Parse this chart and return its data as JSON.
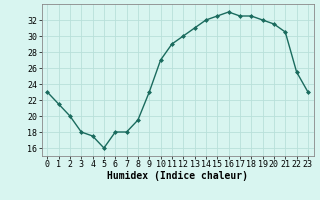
{
  "xlabel": "Humidex (Indice chaleur)",
  "x": [
    0,
    1,
    2,
    3,
    4,
    5,
    6,
    7,
    8,
    9,
    10,
    11,
    12,
    13,
    14,
    15,
    16,
    17,
    18,
    19,
    20,
    21,
    22,
    23
  ],
  "y": [
    23,
    21.5,
    20,
    18,
    17.5,
    16,
    18,
    18,
    19.5,
    23,
    27,
    29,
    30,
    31,
    32,
    32.5,
    33,
    32.5,
    32.5,
    32,
    31.5,
    30.5,
    25.5,
    23
  ],
  "line_color": "#1a6b5e",
  "marker": "D",
  "marker_size": 2.0,
  "bg_color": "#d8f5f0",
  "grid_color": "#b8e0da",
  "ylim": [
    15,
    34
  ],
  "yticks": [
    16,
    18,
    20,
    22,
    24,
    26,
    28,
    30,
    32
  ],
  "xlim": [
    -0.5,
    23.5
  ],
  "xticks": [
    0,
    1,
    2,
    3,
    4,
    5,
    6,
    7,
    8,
    9,
    10,
    11,
    12,
    13,
    14,
    15,
    16,
    17,
    18,
    19,
    20,
    21,
    22,
    23
  ],
  "xlabel_fontsize": 7,
  "tick_fontsize": 6,
  "line_width": 1.0
}
